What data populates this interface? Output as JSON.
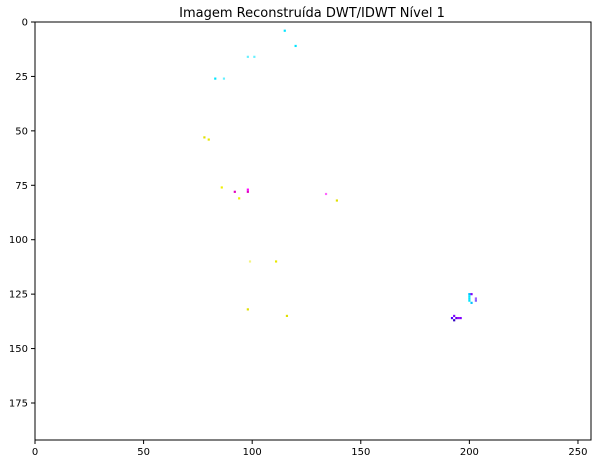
{
  "chart_data": {
    "type": "image",
    "title": "Imagem Reconstruída DWT/IDWT Nível 1",
    "xlabel": "",
    "ylabel": "",
    "xlim": [
      0,
      256
    ],
    "ylim": [
      192,
      0
    ],
    "grid": false,
    "background": "#ffffff",
    "x_ticks": [
      {
        "value": 0,
        "label": "0"
      },
      {
        "value": 50,
        "label": "50"
      },
      {
        "value": 100,
        "label": "100"
      },
      {
        "value": 150,
        "label": "150"
      },
      {
        "value": 200,
        "label": "200"
      },
      {
        "value": 250,
        "label": "250"
      }
    ],
    "y_ticks": [
      {
        "value": 0,
        "label": "0"
      },
      {
        "value": 25,
        "label": "25"
      },
      {
        "value": 50,
        "label": "50"
      },
      {
        "value": 75,
        "label": "75"
      },
      {
        "value": 100,
        "label": "100"
      },
      {
        "value": 125,
        "label": "125"
      },
      {
        "value": 150,
        "label": "150"
      },
      {
        "value": 175,
        "label": "175"
      }
    ],
    "pixels": [
      {
        "x": 115,
        "y": 4,
        "color": "#00e5ff"
      },
      {
        "x": 120,
        "y": 11,
        "color": "#00e5ff"
      },
      {
        "x": 98,
        "y": 16,
        "color": "#66f0ff"
      },
      {
        "x": 101,
        "y": 16,
        "color": "#66f0ff"
      },
      {
        "x": 83,
        "y": 26,
        "color": "#00e5ff"
      },
      {
        "x": 87,
        "y": 26,
        "color": "#66f0ff"
      },
      {
        "x": 78,
        "y": 53,
        "color": "#e0e000"
      },
      {
        "x": 80,
        "y": 54,
        "color": "#e8e800"
      },
      {
        "x": 86,
        "y": 76,
        "color": "#f0f000"
      },
      {
        "x": 92,
        "y": 78,
        "color": "#e000c0"
      },
      {
        "x": 98,
        "y": 77,
        "color": "#ff00ff"
      },
      {
        "x": 98,
        "y": 78,
        "color": "#e000c0"
      },
      {
        "x": 94,
        "y": 81,
        "color": "#f0f000"
      },
      {
        "x": 134,
        "y": 79,
        "color": "#ff66ff"
      },
      {
        "x": 139,
        "y": 82,
        "color": "#e0e000"
      },
      {
        "x": 99,
        "y": 110,
        "color": "#f4f480"
      },
      {
        "x": 111,
        "y": 110,
        "color": "#e8e800"
      },
      {
        "x": 98,
        "y": 132,
        "color": "#e0e000"
      },
      {
        "x": 116,
        "y": 135,
        "color": "#e0e000"
      },
      {
        "x": 200,
        "y": 125,
        "color": "#00c0ff"
      },
      {
        "x": 201,
        "y": 125,
        "color": "#8000ff"
      },
      {
        "x": 200,
        "y": 126,
        "color": "#00e5ff"
      },
      {
        "x": 200,
        "y": 127,
        "color": "#00e5ff"
      },
      {
        "x": 200,
        "y": 128,
        "color": "#00e5ff"
      },
      {
        "x": 201,
        "y": 129,
        "color": "#00c0ff"
      },
      {
        "x": 203,
        "y": 127,
        "color": "#a060ff"
      },
      {
        "x": 203,
        "y": 128,
        "color": "#8060ff"
      },
      {
        "x": 192,
        "y": 136,
        "color": "#5000ff"
      },
      {
        "x": 193,
        "y": 135,
        "color": "#8000ff"
      },
      {
        "x": 194,
        "y": 136,
        "color": "#6000e0"
      },
      {
        "x": 195,
        "y": 136,
        "color": "#a000ff"
      },
      {
        "x": 193,
        "y": 137,
        "color": "#3000c0"
      },
      {
        "x": 196,
        "y": 136,
        "color": "#8000ff"
      }
    ]
  }
}
